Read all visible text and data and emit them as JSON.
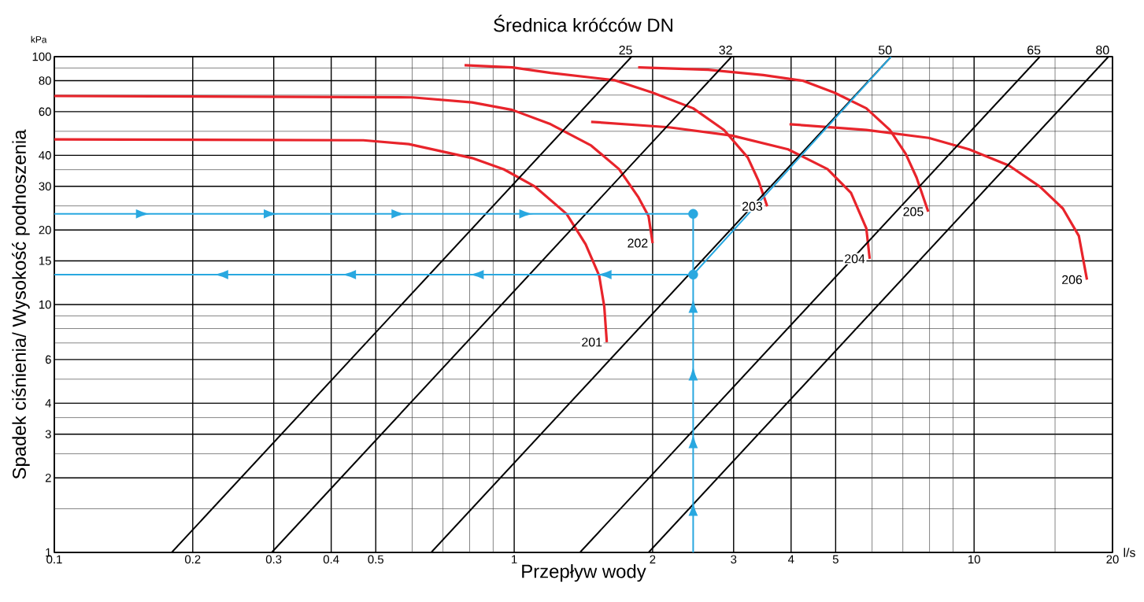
{
  "chart_data": {
    "type": "line",
    "title": "Średnica króćców DN",
    "xlabel": "Przepływ wody",
    "ylabel": "Spadek ciśnienia/ Wysokość podnoszenia",
    "log": "xy",
    "grid": true,
    "xlim": [
      0.1,
      20
    ],
    "ylim": [
      1,
      100
    ],
    "xticks": [
      0.1,
      0.2,
      0.3,
      0.4,
      0.5,
      {
        "value": 0.6,
        "label": null
      },
      {
        "value": 0.7,
        "label": null
      },
      {
        "value": 0.8,
        "label": null
      },
      {
        "value": 0.9,
        "label": null
      },
      1,
      2,
      3,
      4,
      5,
      {
        "value": 6,
        "label": null
      },
      {
        "value": 7,
        "label": null
      },
      {
        "value": 8,
        "label": null
      },
      {
        "value": 9,
        "label": null
      },
      10,
      {
        "value": 15,
        "label": null
      },
      20
    ],
    "yticks": [
      1,
      {
        "value": 1.5,
        "label": null
      },
      2,
      {
        "value": 2.5,
        "label": null
      },
      3,
      {
        "value": 3.5,
        "label": null
      },
      4,
      {
        "value": 5,
        "label": null
      },
      6,
      {
        "value": 7,
        "label": null
      },
      {
        "value": 8,
        "label": null
      },
      {
        "value": 9,
        "label": null
      },
      10,
      15,
      20,
      {
        "value": 25,
        "label": null
      },
      30,
      {
        "value": 35,
        "label": null
      },
      40,
      {
        "value": 50,
        "label": null
      },
      60,
      {
        "value": 70,
        "label": null
      },
      80,
      {
        "value": 90,
        "label": null
      },
      100
    ],
    "annotations": [
      "l/s",
      "kPa"
    ],
    "series": [
      {
        "name": "201",
        "color": "#e8242b",
        "x": [
          0.1,
          0.47,
          0.59,
          0.81,
          0.95,
          1.11,
          1.3,
          1.43,
          1.53,
          1.57,
          1.59
        ],
        "values": [
          46.4,
          46,
          44.4,
          39,
          35.1,
          29.9,
          23.2,
          17.5,
          13.1,
          9.8,
          7.05
        ]
      },
      {
        "name": "202",
        "color": "#e8242b",
        "x": [
          0.1,
          0.6,
          0.81,
          0.99,
          1.2,
          1.47,
          1.69,
          1.86,
          1.96,
          2.0
        ],
        "values": [
          69.4,
          68.5,
          65.4,
          61,
          53.4,
          43.8,
          35.2,
          27.2,
          22.7,
          17.7
        ]
      },
      {
        "name": "203",
        "color": "#e8242b",
        "x": [
          0.78,
          0.99,
          1.2,
          1.65,
          2.0,
          2.45,
          2.86,
          3.22,
          3.4,
          3.55
        ],
        "values": [
          92.3,
          90.5,
          86,
          80.4,
          71.6,
          61.9,
          50.6,
          39.2,
          31.5,
          24.9
        ]
      },
      {
        "name": "204",
        "color": "#e8242b",
        "x": [
          1.47,
          2.17,
          2.98,
          3.94,
          4.8,
          5.4,
          5.83,
          5.93
        ],
        "values": [
          54.6,
          51.9,
          48,
          42.3,
          35.2,
          28.2,
          20.3,
          15.3
        ]
      },
      {
        "name": "205",
        "color": "#e8242b",
        "x": [
          1.86,
          2.64,
          3.48,
          4.24,
          4.97,
          5.83,
          6.56,
          7.1,
          7.5,
          7.95
        ],
        "values": [
          90.5,
          88.6,
          84.3,
          80,
          71.6,
          61.9,
          50.6,
          40.6,
          32.5,
          23.7
        ]
      },
      {
        "name": "206",
        "color": "#e8242b",
        "x": [
          3.97,
          5.83,
          7.97,
          9.75,
          11.9,
          13.9,
          15.6,
          16.9,
          17.6
        ],
        "values": [
          53.4,
          50.6,
          47,
          42.3,
          36.4,
          29.9,
          24.4,
          18.9,
          12.6
        ]
      },
      {
        "name": "25",
        "color": "#000000",
        "x": [
          0.18,
          1.8
        ],
        "values": [
          1,
          100
        ]
      },
      {
        "name": "32",
        "color": "#000000",
        "x": [
          0.297,
          2.97
        ],
        "values": [
          1,
          100
        ]
      },
      {
        "name": "50",
        "color": "#000000",
        "x": [
          0.66,
          6.6
        ],
        "values": [
          1,
          100
        ]
      },
      {
        "name": "65",
        "color": "#000000",
        "x": [
          1.39,
          13.9
        ],
        "values": [
          1,
          100
        ]
      },
      {
        "name": "80",
        "color": "#000000",
        "x": [
          1.96,
          19.6
        ],
        "values": [
          1,
          100
        ]
      },
      {
        "color": "#29a8e0",
        "x": [
          0.1,
          2.45
        ],
        "values": [
          23.2,
          23.2
        ]
      },
      {
        "color": "#29a8e0",
        "x": [
          2.45,
          2.45
        ],
        "values": [
          1,
          23.2
        ]
      },
      {
        "color": "#29a8e0",
        "x": [
          6.6,
          2.45
        ],
        "values": [
          100,
          13.2
        ]
      },
      {
        "color": "#29a8e0",
        "x": [
          2.45,
          0.1
        ],
        "values": [
          13.2,
          13.2
        ]
      },
      {
        "type": "scatter",
        "marker": "circle",
        "color": "#29a8e0",
        "x": [
          2.45,
          2.45
        ],
        "values": [
          23.2,
          13.2
        ]
      }
    ]
  }
}
